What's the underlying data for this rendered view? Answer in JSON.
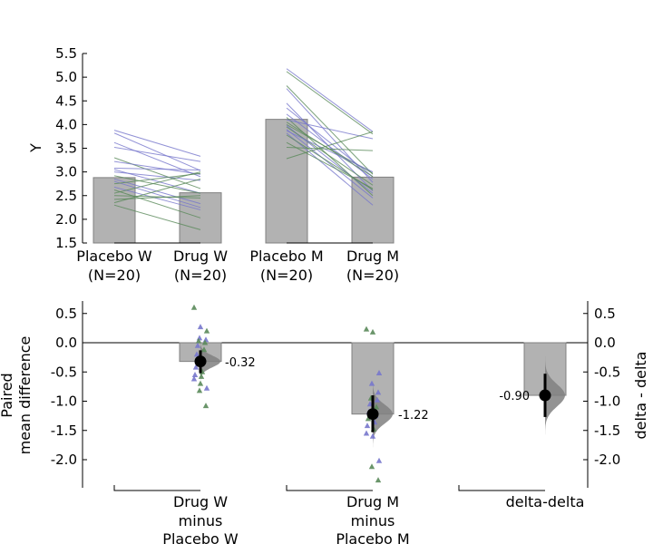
{
  "chart_data": [
    {
      "type": "bar",
      "subtype": "paired estimation plot (raw data)",
      "ylabel": "Y",
      "ylim": [
        1.5,
        5.5
      ],
      "yticks": [
        "1.5",
        "2.0",
        "2.5",
        "3.0",
        "3.5",
        "4.0",
        "4.5",
        "5.0",
        "5.5"
      ],
      "groups": [
        {
          "label_line1": "Placebo W",
          "label_line2": "(N=20)",
          "mean": 2.88
        },
        {
          "label_line1": "Drug W",
          "label_line2": "(N=20)",
          "mean": 2.56
        },
        {
          "label_line1": "Placebo M",
          "label_line2": "(N=20)",
          "mean": 4.11
        },
        {
          "label_line1": "Drug M",
          "label_line2": "(N=20)",
          "mean": 2.89
        }
      ],
      "paired_lines": {
        "pair_1": [
          [
            3.88,
            3.33,
            "blue"
          ],
          [
            3.82,
            3.03,
            "blue"
          ],
          [
            3.62,
            2.9,
            "blue"
          ],
          [
            3.52,
            3.22,
            "blue"
          ],
          [
            3.3,
            2.65,
            "green"
          ],
          [
            3.22,
            2.95,
            "blue"
          ],
          [
            3.08,
            3.04,
            "blue"
          ],
          [
            3.05,
            2.55,
            "blue"
          ],
          [
            3.0,
            2.82,
            "blue"
          ],
          [
            2.92,
            2.55,
            "green"
          ],
          [
            2.85,
            2.33,
            "blue"
          ],
          [
            2.8,
            2.25,
            "blue"
          ],
          [
            2.75,
            2.97,
            "green"
          ],
          [
            2.68,
            2.2,
            "blue"
          ],
          [
            2.62,
            2.03,
            "green"
          ],
          [
            2.55,
            3.0,
            "green"
          ],
          [
            2.5,
            2.45,
            "green"
          ],
          [
            2.42,
            2.5,
            "green"
          ],
          [
            2.35,
            2.85,
            "green"
          ],
          [
            2.3,
            1.78,
            "green"
          ]
        ],
        "pair_2": [
          [
            5.18,
            3.85,
            "blue"
          ],
          [
            5.12,
            3.8,
            "green"
          ],
          [
            4.82,
            2.95,
            "green"
          ],
          [
            4.76,
            2.78,
            "blue"
          ],
          [
            4.45,
            2.6,
            "blue"
          ],
          [
            4.35,
            2.9,
            "blue"
          ],
          [
            4.22,
            2.85,
            "blue"
          ],
          [
            4.15,
            2.5,
            "green"
          ],
          [
            4.1,
            3.7,
            "blue"
          ],
          [
            4.05,
            2.9,
            "green"
          ],
          [
            4.0,
            2.97,
            "green"
          ],
          [
            3.98,
            2.55,
            "blue"
          ],
          [
            3.95,
            2.72,
            "green"
          ],
          [
            3.9,
            2.45,
            "blue"
          ],
          [
            3.87,
            3.0,
            "blue"
          ],
          [
            3.82,
            2.3,
            "blue"
          ],
          [
            3.78,
            2.62,
            "green"
          ],
          [
            3.62,
            2.65,
            "green"
          ],
          [
            3.52,
            3.45,
            "green"
          ],
          [
            3.28,
            3.85,
            "green"
          ]
        ]
      },
      "colors": {
        "bar": "#b2b2b2",
        "bar_edge": "#808080",
        "blue": "#7777cc",
        "green": "#5a8a5a"
      }
    },
    {
      "type": "bar",
      "subtype": "paired mean difference with bootstrap distributions",
      "ylabel_line1": "Paired",
      "ylabel_line2": "mean difference",
      "ylabel_right": "delta - delta",
      "ylim": [
        -2.45,
        0.72
      ],
      "yticks": [
        "0.5",
        "0.0",
        "-0.5",
        "-1.0",
        "-1.5",
        "-2.0"
      ],
      "yticks_right": [
        "0.5",
        "0.0",
        "-0.5",
        "-1.0",
        "-1.5",
        "-2.0"
      ],
      "comparisons": [
        {
          "label_line1": "Drug W",
          "label_line2": "minus",
          "label_line3": "Placebo W",
          "mean_diff": -0.32,
          "ci": [
            -0.52,
            -0.13
          ],
          "annotation": "-0.32"
        },
        {
          "label_line1": "Drug M",
          "label_line2": "minus",
          "label_line3": "Placebo M",
          "mean_diff": -1.22,
          "ci": [
            -1.53,
            -0.9
          ],
          "annotation": "-1.22"
        },
        {
          "label_line1": "delta-delta",
          "label_line2": "",
          "label_line3": "",
          "mean_diff": -0.9,
          "ci": [
            -1.27,
            -0.53
          ],
          "annotation": "-0.90"
        }
      ],
      "differences": {
        "comparison_1": [
          [
            0.6,
            "green"
          ],
          [
            0.27,
            "blue"
          ],
          [
            0.2,
            "green"
          ],
          [
            0.08,
            "blue"
          ],
          [
            0.05,
            "blue"
          ],
          [
            0.03,
            "green"
          ],
          [
            0.0,
            "green"
          ],
          [
            -0.05,
            "blue"
          ],
          [
            -0.12,
            "green"
          ],
          [
            -0.2,
            "blue"
          ],
          [
            -0.3,
            "green"
          ],
          [
            -0.42,
            "blue"
          ],
          [
            -0.5,
            "green"
          ],
          [
            -0.55,
            "blue"
          ],
          [
            -0.58,
            "green"
          ],
          [
            -0.62,
            "blue"
          ],
          [
            -0.7,
            "green"
          ],
          [
            -0.78,
            "blue"
          ],
          [
            -0.82,
            "green"
          ],
          [
            -1.08,
            "green"
          ]
        ],
        "comparison_2": [
          [
            0.23,
            "green"
          ],
          [
            0.18,
            "green"
          ],
          [
            -0.52,
            "blue"
          ],
          [
            -0.7,
            "blue"
          ],
          [
            -0.85,
            "blue"
          ],
          [
            -0.95,
            "green"
          ],
          [
            -0.98,
            "blue"
          ],
          [
            -1.05,
            "blue"
          ],
          [
            -1.1,
            "green"
          ],
          [
            -1.18,
            "blue"
          ],
          [
            -1.25,
            "blue"
          ],
          [
            -1.3,
            "green"
          ],
          [
            -1.36,
            "blue"
          ],
          [
            -1.42,
            "blue"
          ],
          [
            -1.48,
            "green"
          ],
          [
            -1.55,
            "blue"
          ],
          [
            -1.6,
            "blue"
          ],
          [
            -2.02,
            "blue"
          ],
          [
            -2.12,
            "green"
          ],
          [
            -2.35,
            "green"
          ]
        ]
      },
      "colors": {
        "bar": "#b2b2b2",
        "bar_edge": "#808080",
        "dist": "#808080",
        "blue": "#7777cc",
        "green": "#5a8a5a",
        "mean_dot": "#000000"
      }
    }
  ]
}
